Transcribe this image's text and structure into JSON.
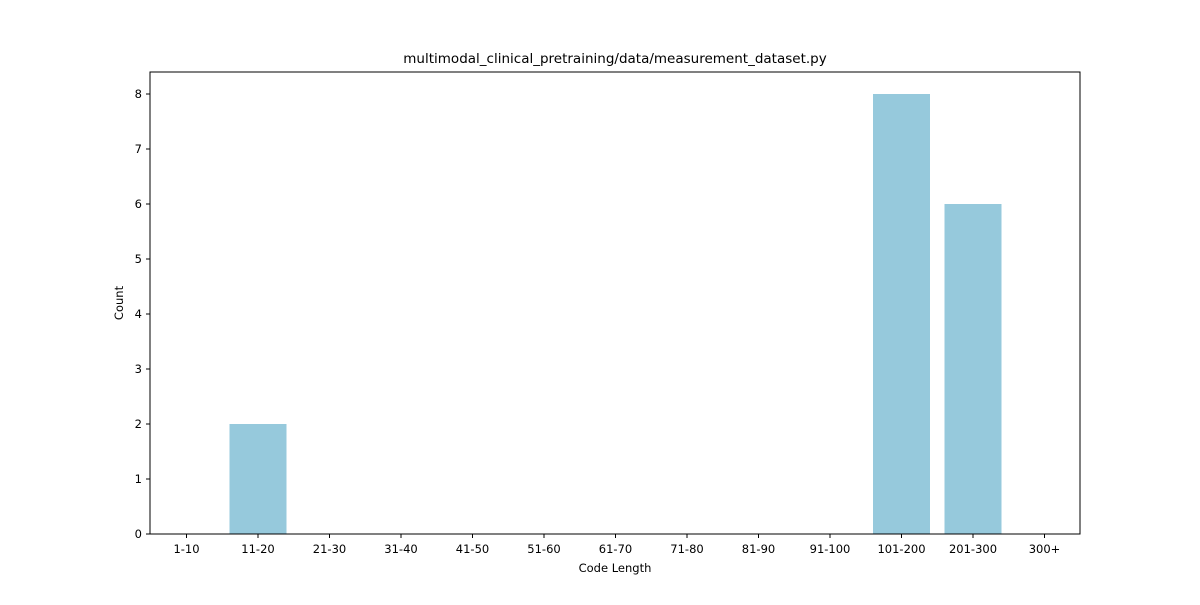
{
  "chart_data": {
    "type": "bar",
    "title": "multimodal_clinical_pretraining/data/measurement_dataset.py",
    "xlabel": "Code Length",
    "ylabel": "Count",
    "categories": [
      "1-10",
      "11-20",
      "21-30",
      "31-40",
      "41-50",
      "51-60",
      "61-70",
      "71-80",
      "81-90",
      "91-100",
      "101-200",
      "201-300",
      "300+"
    ],
    "values": [
      0,
      2,
      0,
      0,
      0,
      0,
      0,
      0,
      0,
      0,
      8,
      6,
      0
    ],
    "ylim": [
      0,
      8.4
    ],
    "yticks": [
      0,
      1,
      2,
      3,
      4,
      5,
      6,
      7,
      8
    ],
    "grid": false,
    "bar_color": "#96c9dc"
  }
}
